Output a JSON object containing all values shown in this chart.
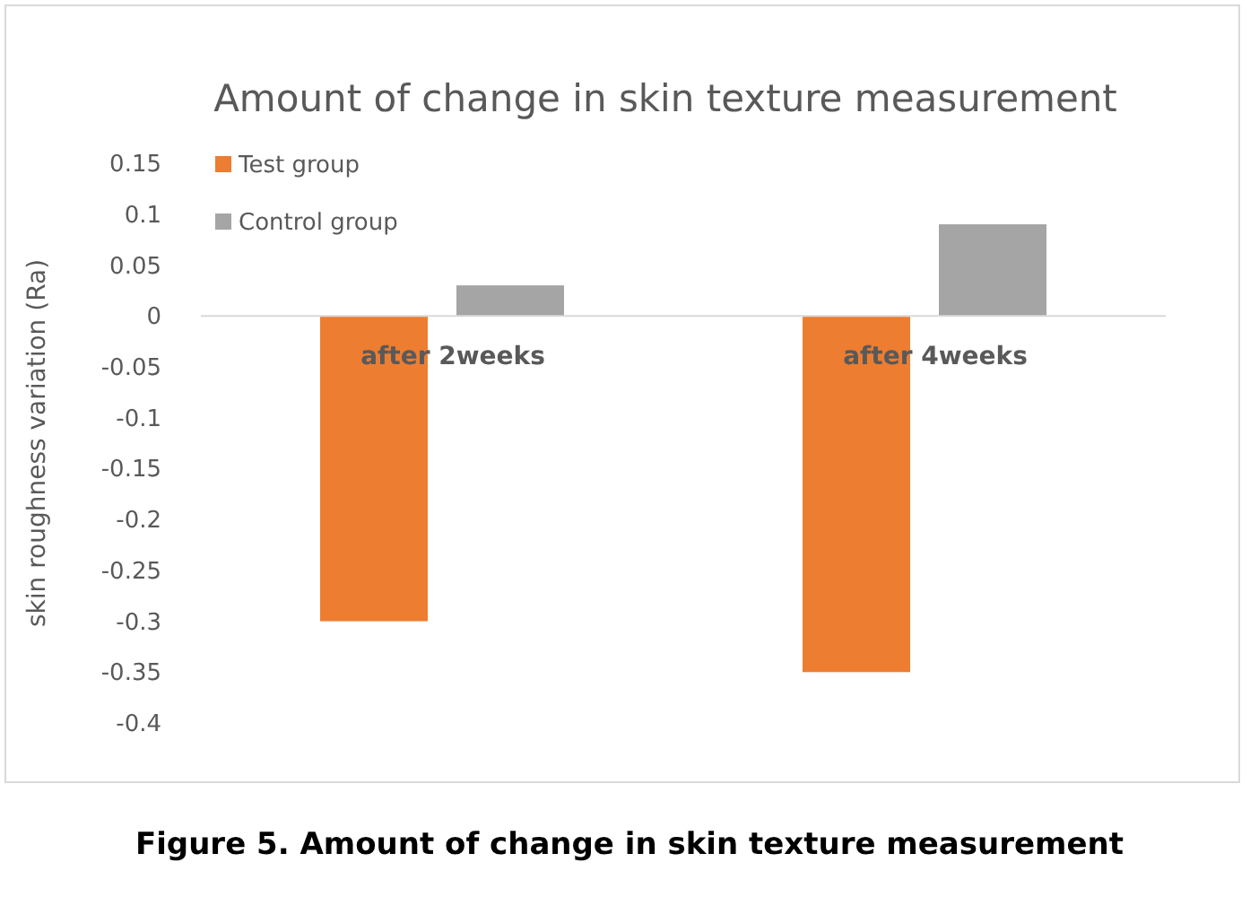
{
  "chart_data": {
    "type": "bar",
    "title": "Amount of change in skin texture measurement",
    "ylabel": "skin roughness variation (Ra)",
    "categories": [
      "after 2weeks",
      "after 4weeks"
    ],
    "series": [
      {
        "name": "Test group",
        "color": "#ed7d31",
        "values": [
          -0.3,
          -0.35
        ]
      },
      {
        "name": "Control group",
        "color": "#a5a5a5",
        "values": [
          0.03,
          0.09
        ]
      }
    ],
    "ylim": [
      -0.4,
      0.15
    ],
    "yticks": [
      0.15,
      0.1,
      0.05,
      0,
      -0.05,
      -0.1,
      -0.15,
      -0.2,
      -0.25,
      -0.3,
      -0.35,
      -0.4
    ],
    "grid": false,
    "legend": "top left",
    "annotations": [
      "Figure 5. Amount of change in skin texture measurement"
    ]
  }
}
